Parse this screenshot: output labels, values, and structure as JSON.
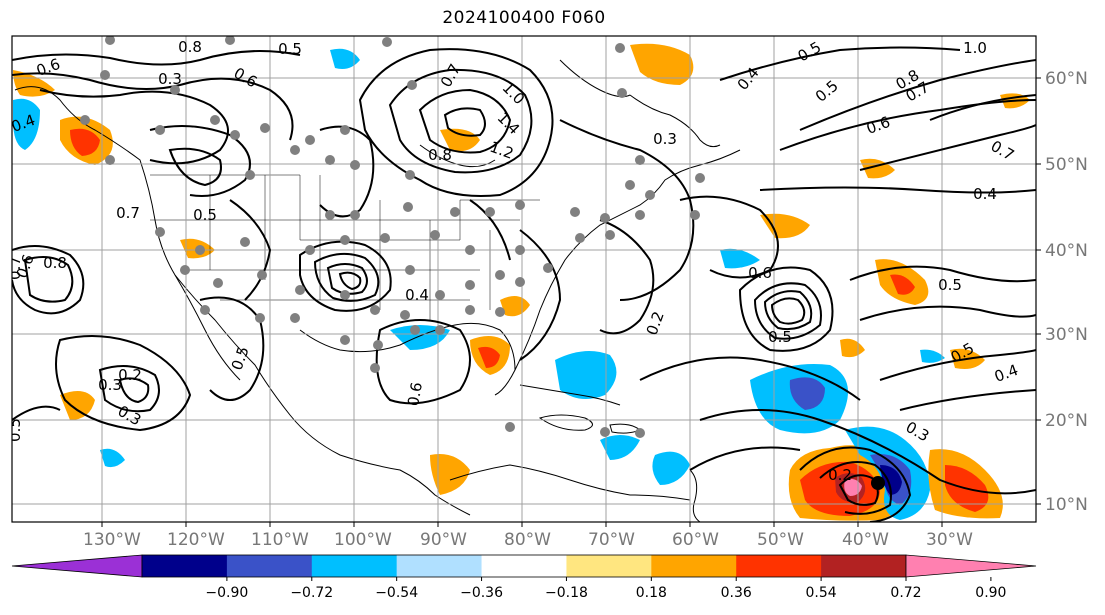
{
  "title": "2024100400 F060",
  "lon_labels": [
    "130°W",
    "120°W",
    "110°W",
    "100°W",
    "90°W",
    "80°W",
    "70°W",
    "60°W",
    "50°W",
    "40°W",
    "30°W"
  ],
  "lat_labels": [
    "60°N",
    "50°N",
    "40°N",
    "30°N",
    "20°N",
    "10°N"
  ],
  "colorbar": {
    "ticks": [
      "−0.90",
      "−0.72",
      "−0.54",
      "−0.36",
      "−0.18",
      "0.18",
      "0.36",
      "0.54",
      "0.72",
      "0.90"
    ],
    "colors": [
      "#9b30d6",
      "#00008b",
      "#3a52c8",
      "#00bfff",
      "#b0e0ff",
      "#ffffff",
      "#ffe680",
      "#ffa500",
      "#ff3300",
      "#b22222",
      "#ff80b0"
    ]
  },
  "contour_labels": [
    "0.5",
    "0.8",
    "0.3",
    "0.6",
    "0.6",
    "0.4",
    "0.7",
    "1.0",
    "1.4",
    "1.2",
    "0.8",
    "0.3",
    "0.4",
    "0.5",
    "0.5",
    "1.0",
    "0.8",
    "0.7",
    "0.6",
    "0.7",
    "0.4",
    "0.5",
    "0.7",
    "0.5",
    "0.8",
    "0.6",
    "0.7",
    "0.3",
    "0.2",
    "0.3",
    "0.5",
    "0.5",
    "0.6",
    "0.4",
    "0.2",
    "0.6",
    "0.5",
    "0.3",
    "0.5",
    "0.4",
    "0.2"
  ],
  "colors": {
    "land_outline": "#000000",
    "grid": "#a0a0a0",
    "station_marker": "#808080",
    "storm_center": "#000000"
  }
}
